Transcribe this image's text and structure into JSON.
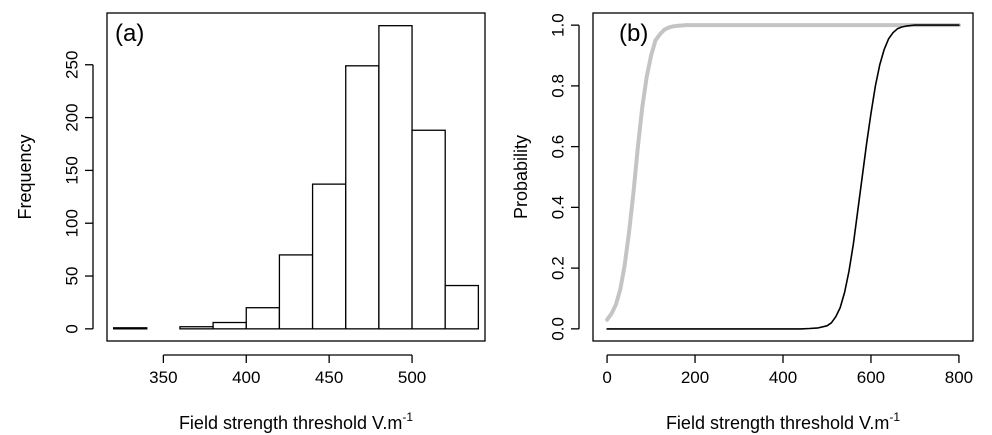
{
  "chart_data": [
    {
      "type": "bar",
      "panel_label": "(a)",
      "title": "",
      "xlabel": "Field strength threshold  V.m",
      "xlabel_superscript": "-1",
      "ylabel": "Frequency",
      "bins": [
        {
          "from": 320,
          "to": 340,
          "count": 1
        },
        {
          "from": 340,
          "to": 360,
          "count": 0
        },
        {
          "from": 360,
          "to": 380,
          "count": 2
        },
        {
          "from": 380,
          "to": 400,
          "count": 6
        },
        {
          "from": 400,
          "to": 420,
          "count": 20
        },
        {
          "from": 420,
          "to": 440,
          "count": 70
        },
        {
          "from": 440,
          "to": 460,
          "count": 137
        },
        {
          "from": 460,
          "to": 480,
          "count": 249
        },
        {
          "from": 480,
          "to": 500,
          "count": 287
        },
        {
          "from": 500,
          "to": 520,
          "count": 188
        },
        {
          "from": 520,
          "to": 540,
          "count": 41
        }
      ],
      "xlim": [
        316,
        544
      ],
      "ylim": [
        -11.5,
        299
      ],
      "xticks": [
        350,
        400,
        450,
        500
      ],
      "xtick_labels": [
        "350",
        "400",
        "450",
        "500"
      ],
      "yticks": [
        0,
        50,
        100,
        150,
        200,
        250
      ],
      "ytick_labels": [
        "0",
        "50",
        "100",
        "150",
        "200",
        "250"
      ],
      "grid": false,
      "legend": "none"
    },
    {
      "type": "line",
      "panel_label": "(b)",
      "title": "",
      "xlabel": "Field strength threshold  V.m",
      "xlabel_superscript": "-1",
      "ylabel": "Probability",
      "series": [
        {
          "color": "#c4c4c4",
          "x": [
            0,
            10,
            20,
            30,
            40,
            50,
            60,
            70,
            80,
            90,
            100,
            110,
            120,
            130,
            140,
            150,
            160,
            170,
            180,
            190,
            200,
            220,
            240,
            260,
            300,
            400,
            500,
            600,
            700,
            800
          ],
          "y": [
            0.03,
            0.05,
            0.08,
            0.13,
            0.21,
            0.32,
            0.45,
            0.6,
            0.73,
            0.83,
            0.9,
            0.95,
            0.97,
            0.985,
            0.992,
            0.996,
            0.998,
            0.999,
            1.0,
            1.0,
            1.0,
            1.0,
            1.0,
            1.0,
            1.0,
            1.0,
            1.0,
            1.0,
            1.0,
            1.0
          ]
        },
        {
          "color": "#000000",
          "x": [
            0,
            100,
            200,
            300,
            400,
            440,
            460,
            480,
            500,
            510,
            520,
            530,
            540,
            550,
            560,
            570,
            580,
            590,
            600,
            610,
            620,
            630,
            640,
            650,
            660,
            670,
            680,
            690,
            700,
            720,
            750,
            800
          ],
          "y": [
            0,
            0,
            0,
            0,
            0,
            0.0,
            0.001,
            0.003,
            0.01,
            0.02,
            0.04,
            0.07,
            0.12,
            0.19,
            0.28,
            0.39,
            0.5,
            0.61,
            0.71,
            0.8,
            0.87,
            0.92,
            0.955,
            0.975,
            0.988,
            0.994,
            0.997,
            0.999,
            1.0,
            1.0,
            1.0,
            1.0
          ]
        }
      ],
      "xlim": [
        -32,
        832
      ],
      "ylim": [
        -0.04,
        1.04
      ],
      "xticks": [
        0,
        200,
        400,
        600,
        800
      ],
      "xtick_labels": [
        "0",
        "200",
        "400",
        "600",
        "800"
      ],
      "yticks": [
        0,
        0.2,
        0.4,
        0.6,
        0.8,
        1.0
      ],
      "ytick_labels": [
        "0.0",
        "0.2",
        "0.4",
        "0.6",
        "0.8",
        "1.0"
      ],
      "grid": false,
      "legend": "none"
    }
  ]
}
